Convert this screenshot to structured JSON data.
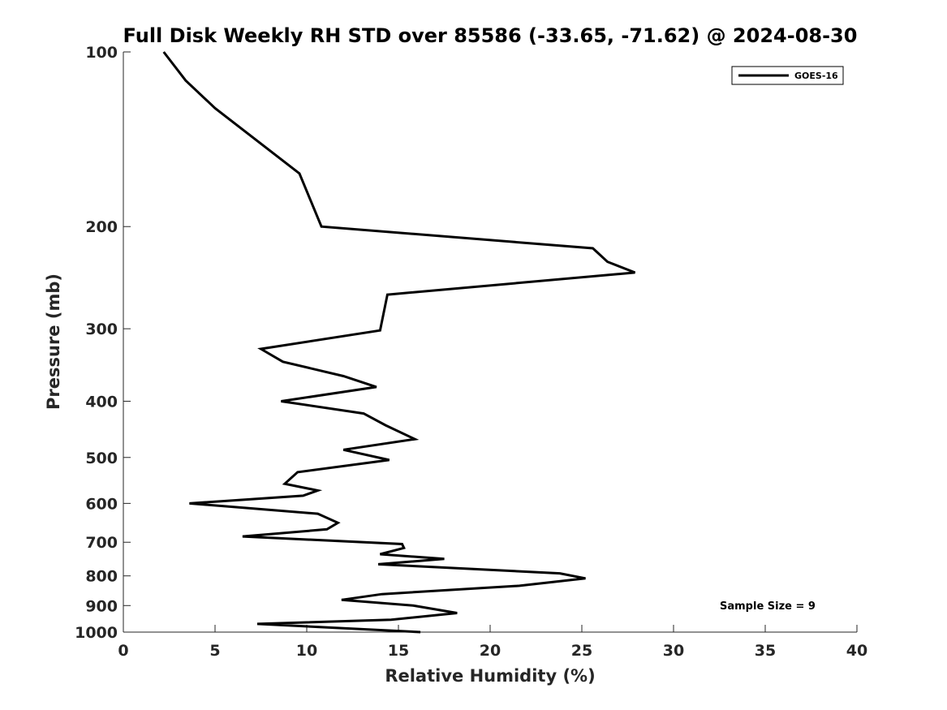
{
  "chart_data": {
    "type": "line",
    "title": "Full Disk Weekly RH STD over 85586 (-33.65, -71.62) @ 2024-08-30",
    "xlabel": "Relative Humidity (%)",
    "ylabel": "Pressure (mb)",
    "xlim": [
      0,
      40
    ],
    "ylim": [
      100,
      1000
    ],
    "y_scale": "log",
    "y_reversed": true,
    "x_ticks": [
      0,
      5,
      10,
      15,
      20,
      25,
      30,
      35,
      40
    ],
    "x_tick_labels": [
      "0",
      "5",
      "10",
      "15",
      "20",
      "25",
      "30",
      "35",
      "40"
    ],
    "y_ticks": [
      100,
      200,
      300,
      400,
      500,
      600,
      700,
      800,
      900,
      1000
    ],
    "y_tick_labels": [
      "100",
      "200",
      "300",
      "400",
      "500",
      "600",
      "700",
      "800",
      "900",
      "1000"
    ],
    "grid": false,
    "legend_position": "top-right",
    "annotation": "Sample Size = 9",
    "series": [
      {
        "name": "GOES-16",
        "color": "#000000",
        "x": [
          2.2,
          3.4,
          5.0,
          9.6,
          10.8,
          25.6,
          26.4,
          27.9,
          14.4,
          14.0,
          7.5,
          8.7,
          12.0,
          13.8,
          8.6,
          13.1,
          14.3,
          15.9,
          12.0,
          14.5,
          9.5,
          8.8,
          10.6,
          9.8,
          3.6,
          10.6,
          11.7,
          11.1,
          6.5,
          15.2,
          15.3,
          14.0,
          17.5,
          13.9,
          23.8,
          25.2,
          21.6,
          14.1,
          11.9,
          15.8,
          18.2,
          14.6,
          7.3,
          16.2
        ],
        "y": [
          100,
          112,
          125,
          162,
          200,
          218,
          230,
          240,
          262,
          302,
          325,
          342,
          362,
          378,
          400,
          420,
          440,
          465,
          485,
          505,
          530,
          555,
          570,
          582,
          600,
          625,
          648,
          665,
          684,
          705,
          716,
          734,
          748,
          764,
          792,
          808,
          832,
          860,
          880,
          900,
          927,
          952,
          968,
          1000
        ]
      }
    ]
  }
}
